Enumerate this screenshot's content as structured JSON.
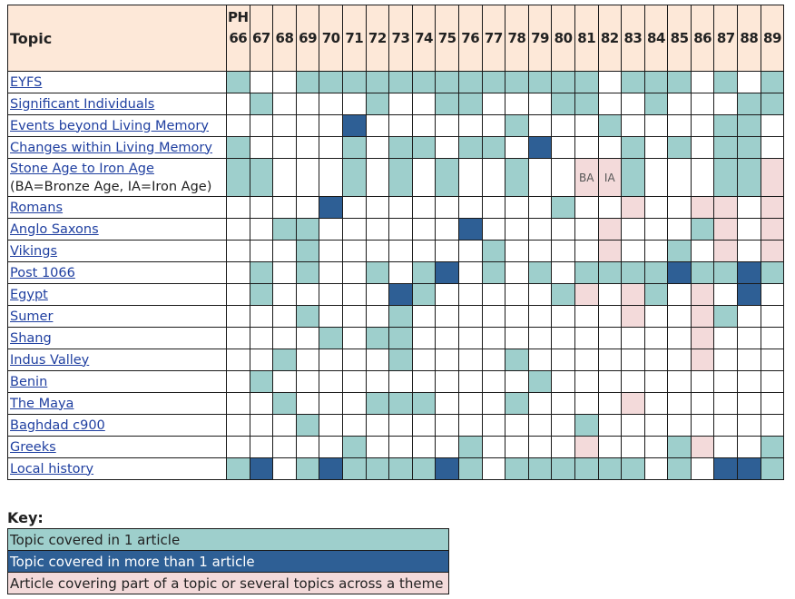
{
  "header": {
    "topic": "Topic",
    "issues": [
      "PH 66",
      "67",
      "68",
      "69",
      "70",
      "71",
      "72",
      "73",
      "74",
      "75",
      "76",
      "77",
      "78",
      "79",
      "80",
      "81",
      "82",
      "83",
      "84",
      "85",
      "86",
      "87",
      "88",
      "89"
    ]
  },
  "rows": [
    {
      "label": "EYFS",
      "cells": [
        1,
        0,
        0,
        1,
        1,
        1,
        1,
        1,
        1,
        1,
        1,
        1,
        1,
        1,
        1,
        1,
        0,
        1,
        1,
        1,
        0,
        1,
        0,
        1
      ]
    },
    {
      "label": "Significant Individuals",
      "cells": [
        0,
        1,
        0,
        0,
        0,
        0,
        1,
        0,
        0,
        1,
        1,
        0,
        0,
        0,
        1,
        1,
        0,
        0,
        1,
        0,
        0,
        0,
        1,
        1
      ]
    },
    {
      "label": "Events beyond Living Memory",
      "cells": [
        0,
        0,
        0,
        0,
        0,
        2,
        0,
        0,
        0,
        0,
        0,
        0,
        1,
        0,
        0,
        0,
        1,
        0,
        0,
        0,
        0,
        1,
        1,
        0
      ]
    },
    {
      "label": "Changes within Living Memory",
      "cells": [
        1,
        0,
        0,
        0,
        0,
        1,
        0,
        1,
        1,
        0,
        1,
        1,
        0,
        2,
        0,
        0,
        0,
        1,
        0,
        1,
        0,
        1,
        1,
        0
      ]
    },
    {
      "label": "Stone Age to Iron Age",
      "sub": "(BA=Bronze Age, IA=Iron Age)",
      "tall": true,
      "cells": [
        1,
        1,
        0,
        0,
        0,
        1,
        0,
        1,
        0,
        1,
        0,
        0,
        1,
        0,
        0,
        3,
        3,
        1,
        0,
        0,
        0,
        1,
        1,
        3
      ],
      "texts": {
        "15": "BA",
        "16": "IA"
      }
    },
    {
      "label": "Romans",
      "cells": [
        0,
        0,
        0,
        0,
        2,
        0,
        0,
        0,
        0,
        0,
        0,
        0,
        0,
        0,
        1,
        0,
        0,
        3,
        0,
        0,
        3,
        3,
        0,
        3
      ]
    },
    {
      "label": "Anglo Saxons",
      "cells": [
        0,
        0,
        1,
        1,
        0,
        0,
        0,
        0,
        0,
        0,
        2,
        0,
        0,
        0,
        0,
        0,
        3,
        0,
        0,
        0,
        1,
        3,
        0,
        3
      ]
    },
    {
      "label": "Vikings",
      "cells": [
        0,
        0,
        0,
        1,
        0,
        0,
        0,
        0,
        0,
        0,
        0,
        1,
        0,
        0,
        0,
        0,
        3,
        0,
        0,
        1,
        0,
        3,
        0,
        3
      ]
    },
    {
      "label": "Post 1066",
      "cells": [
        0,
        1,
        0,
        1,
        0,
        0,
        1,
        0,
        1,
        2,
        0,
        1,
        0,
        1,
        0,
        1,
        1,
        1,
        1,
        2,
        1,
        1,
        2,
        1
      ]
    },
    {
      "label": "Egypt",
      "cells": [
        0,
        1,
        0,
        0,
        0,
        0,
        0,
        2,
        1,
        0,
        0,
        0,
        0,
        0,
        1,
        3,
        0,
        3,
        1,
        0,
        3,
        0,
        2,
        0
      ]
    },
    {
      "label": "Sumer",
      "cells": [
        0,
        0,
        0,
        1,
        0,
        0,
        0,
        1,
        0,
        0,
        0,
        0,
        0,
        0,
        0,
        0,
        0,
        3,
        0,
        0,
        3,
        1,
        0,
        0
      ]
    },
    {
      "label": "Shang",
      "cells": [
        0,
        0,
        0,
        0,
        1,
        0,
        1,
        1,
        0,
        0,
        0,
        0,
        0,
        0,
        0,
        0,
        0,
        0,
        0,
        0,
        3,
        0,
        0,
        0
      ]
    },
    {
      "label": "Indus Valley",
      "cells": [
        0,
        0,
        1,
        0,
        0,
        0,
        0,
        1,
        0,
        0,
        0,
        0,
        1,
        0,
        0,
        0,
        0,
        0,
        0,
        0,
        3,
        0,
        0,
        0
      ]
    },
    {
      "label": "Benin",
      "cells": [
        0,
        1,
        0,
        0,
        0,
        0,
        0,
        0,
        0,
        0,
        0,
        0,
        0,
        1,
        0,
        0,
        0,
        0,
        0,
        0,
        0,
        0,
        0,
        0
      ]
    },
    {
      "label": "The Maya",
      "cells": [
        0,
        0,
        1,
        0,
        0,
        0,
        1,
        1,
        1,
        0,
        0,
        0,
        1,
        0,
        0,
        0,
        0,
        3,
        0,
        0,
        0,
        0,
        0,
        0
      ]
    },
    {
      "label": "Baghdad c900",
      "cells": [
        0,
        0,
        0,
        1,
        0,
        0,
        0,
        0,
        0,
        0,
        0,
        0,
        0,
        0,
        0,
        1,
        0,
        0,
        0,
        0,
        0,
        0,
        0,
        0
      ]
    },
    {
      "label": "Greeks",
      "cells": [
        0,
        0,
        0,
        0,
        0,
        1,
        0,
        0,
        0,
        0,
        1,
        0,
        0,
        0,
        0,
        3,
        0,
        0,
        0,
        1,
        3,
        0,
        0,
        1
      ]
    },
    {
      "label": "Local history",
      "cells": [
        1,
        2,
        0,
        1,
        2,
        1,
        1,
        1,
        1,
        2,
        1,
        0,
        1,
        1,
        1,
        1,
        1,
        1,
        0,
        1,
        0,
        2,
        2,
        1
      ]
    }
  ],
  "colors": {
    "none": "#ffffff",
    "one": "#9ecfcc",
    "many": "#2e5f95",
    "partial": "#f3dada",
    "header": "#fde8d8"
  },
  "key": {
    "title": "Key:",
    "items": [
      {
        "label": "Topic covered in 1 article",
        "level": 1
      },
      {
        "label": "Topic covered in more than 1 article",
        "level": 2
      },
      {
        "label": "Article covering part of a topic or several topics across a theme",
        "level": 3
      }
    ]
  }
}
